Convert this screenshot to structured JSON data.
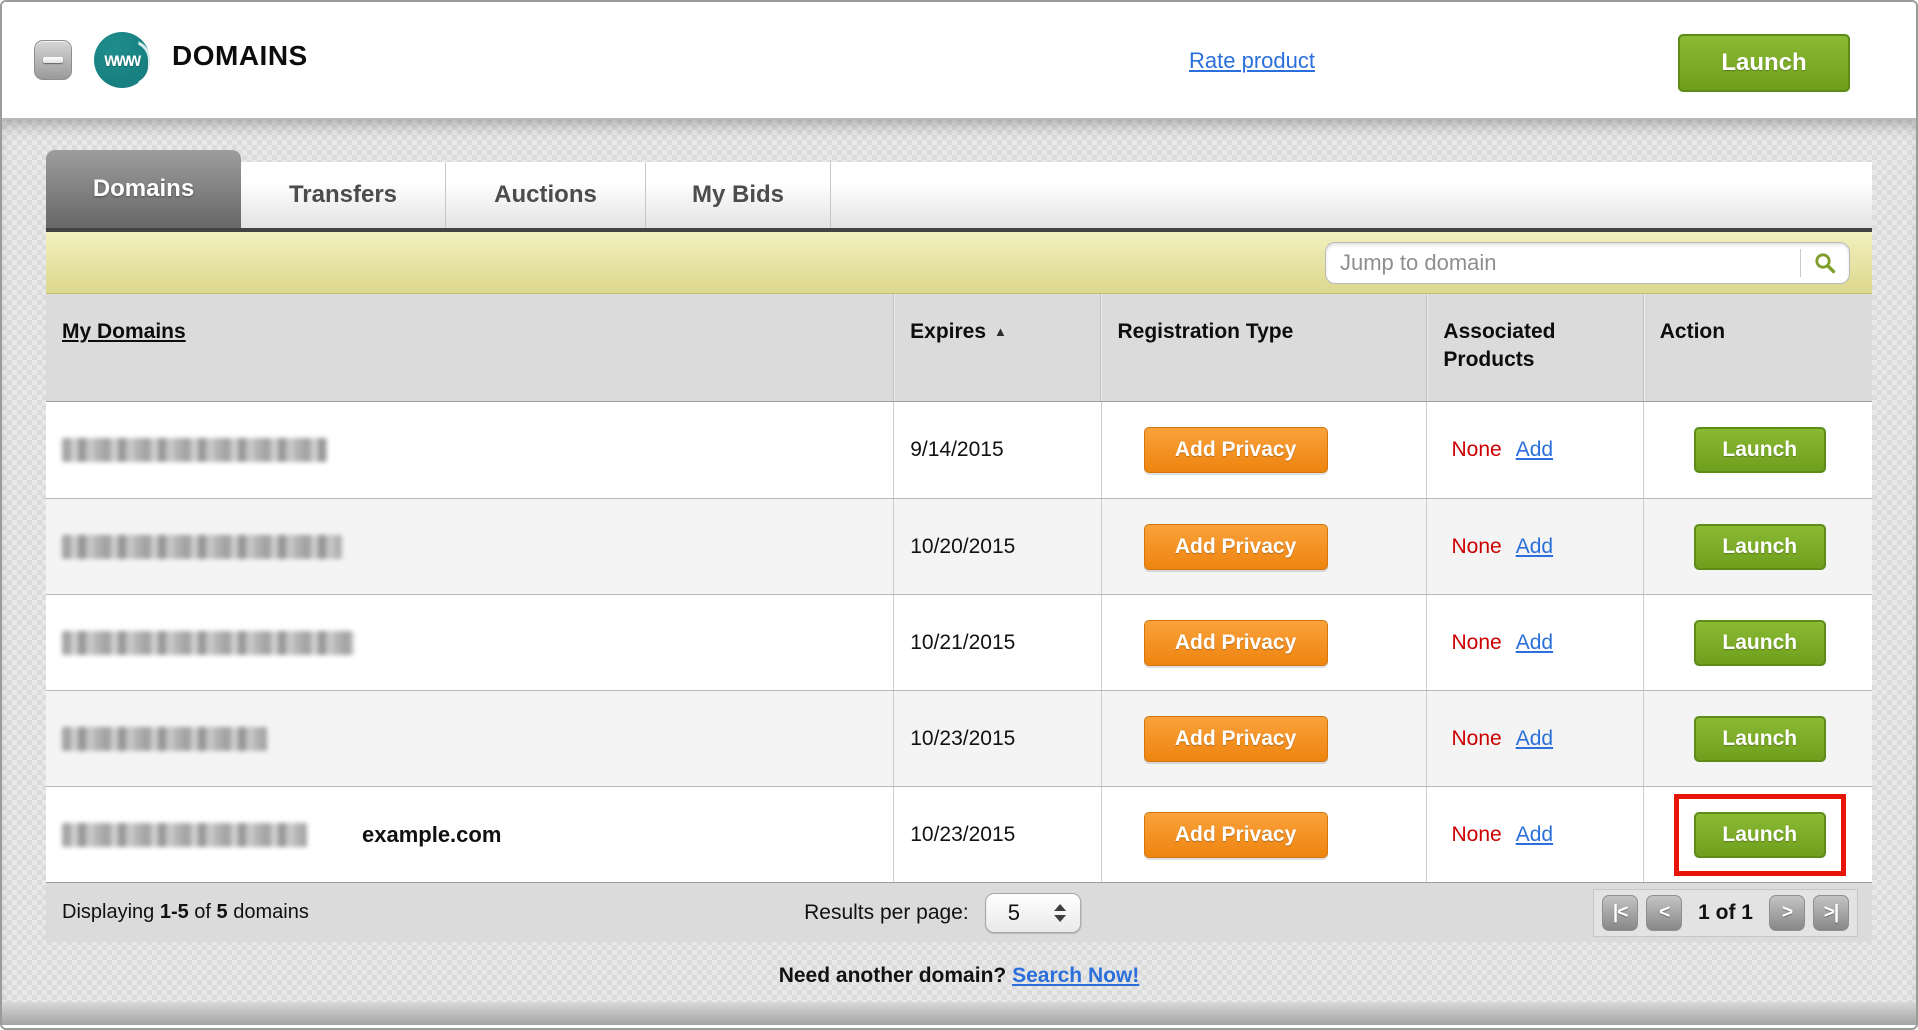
{
  "header": {
    "title": "DOMAINS",
    "icon_text": "www",
    "rate_product_label": "Rate product",
    "launch_label": "Launch"
  },
  "tabs": [
    {
      "label": "Domains",
      "active": true
    },
    {
      "label": "Transfers",
      "active": false
    },
    {
      "label": "Auctions",
      "active": false
    },
    {
      "label": "My Bids",
      "active": false
    }
  ],
  "search": {
    "placeholder": "Jump to domain"
  },
  "table": {
    "columns": [
      "My Domains",
      "Expires",
      "Registration Type",
      "Associated Products",
      "Action"
    ],
    "sort_column": "Expires",
    "sort_direction": "ascending",
    "sort_arrow": "▲",
    "rows": [
      {
        "domain": "[redacted]",
        "redacted_width": 265,
        "domain_note": "",
        "expires": "9/14/2015",
        "registration_button": "Add Privacy",
        "associated_value": "None",
        "associated_link": "Add",
        "action_button": "Launch",
        "highlighted": false
      },
      {
        "domain": "[redacted]",
        "redacted_width": 280,
        "domain_note": "",
        "expires": "10/20/2015",
        "registration_button": "Add Privacy",
        "associated_value": "None",
        "associated_link": "Add",
        "action_button": "Launch",
        "highlighted": false
      },
      {
        "domain": "[redacted]",
        "redacted_width": 292,
        "domain_note": "",
        "expires": "10/21/2015",
        "registration_button": "Add Privacy",
        "associated_value": "None",
        "associated_link": "Add",
        "action_button": "Launch",
        "highlighted": false
      },
      {
        "domain": "[redacted]",
        "redacted_width": 205,
        "domain_note": "",
        "expires": "10/23/2015",
        "registration_button": "Add Privacy",
        "associated_value": "None",
        "associated_link": "Add",
        "action_button": "Launch",
        "highlighted": false
      },
      {
        "domain": "[redacted]",
        "redacted_width": 245,
        "domain_note": "example.com",
        "expires": "10/23/2015",
        "registration_button": "Add Privacy",
        "associated_value": "None",
        "associated_link": "Add",
        "action_button": "Launch",
        "highlighted": true
      }
    ]
  },
  "footer": {
    "displaying_label": "Displaying",
    "range": "1-5",
    "of_label": "of",
    "total": "5",
    "domains_label": "domains",
    "results_label": "Results per page:",
    "results_value": "5",
    "pagination": {
      "first": "|<",
      "prev": "<",
      "status": "1 of 1",
      "next": ">",
      "last": ">|"
    }
  },
  "bottom": {
    "prompt": "Need another domain?",
    "link": "Search Now!"
  },
  "colors": {
    "brand-teal": "#177f7f",
    "green-light": "#8aba33",
    "green-dark": "#6f9e1d",
    "green-border": "#5d8c19",
    "orange-light": "#f9a23c",
    "orange-dark": "#ee8410",
    "link-blue": "#2a6fdb",
    "status-red": "#cc0000",
    "highlight-red": "#e81309"
  }
}
